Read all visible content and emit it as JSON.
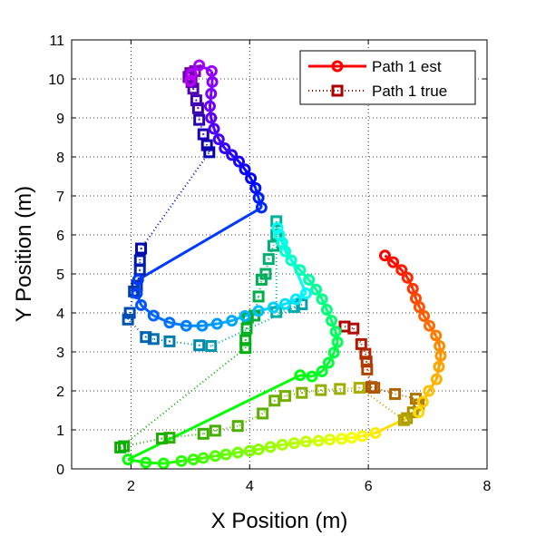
{
  "chart_data": {
    "type": "line",
    "title": "",
    "xlabel": "X Position (m)",
    "ylabel": "Y Position (m)",
    "xlim": [
      1,
      8
    ],
    "ylim": [
      0,
      11
    ],
    "xticks": [
      "2",
      "4",
      "6",
      "8"
    ],
    "yticks": [
      "0",
      "1",
      "2",
      "3",
      "4",
      "5",
      "6",
      "7",
      "8",
      "9",
      "10",
      "11"
    ],
    "grid": true,
    "legend_position": "top-right",
    "legend": [
      {
        "name": "Path 1 est",
        "color": "#ff0000",
        "marker": "circle",
        "linestyle": "solid"
      },
      {
        "name": "Path 1 true",
        "color": "#aa0000",
        "marker": "square",
        "linestyle": "dotted"
      }
    ],
    "est_path": [
      [
        6.28,
        5.47
      ],
      [
        6.42,
        5.3
      ],
      [
        6.56,
        5.1
      ],
      [
        6.66,
        4.9
      ],
      [
        6.75,
        4.62
      ],
      [
        6.8,
        4.37
      ],
      [
        6.86,
        4.15
      ],
      [
        6.94,
        3.92
      ],
      [
        7.03,
        3.67
      ],
      [
        7.14,
        3.42
      ],
      [
        7.2,
        3.15
      ],
      [
        7.22,
        2.9
      ],
      [
        7.19,
        2.62
      ],
      [
        7.15,
        2.3
      ],
      [
        7.02,
        2.0
      ],
      [
        6.92,
        1.72
      ],
      [
        6.85,
        1.45
      ],
      [
        6.12,
        0.92
      ],
      [
        5.9,
        0.84
      ],
      [
        5.72,
        0.8
      ],
      [
        5.55,
        0.77
      ],
      [
        5.35,
        0.75
      ],
      [
        5.16,
        0.72
      ],
      [
        4.95,
        0.7
      ],
      [
        4.75,
        0.66
      ],
      [
        4.55,
        0.62
      ],
      [
        4.35,
        0.56
      ],
      [
        4.15,
        0.5
      ],
      [
        4.0,
        0.46
      ],
      [
        3.8,
        0.42
      ],
      [
        3.6,
        0.37
      ],
      [
        3.42,
        0.33
      ],
      [
        3.22,
        0.28
      ],
      [
        3.05,
        0.24
      ],
      [
        2.85,
        0.2
      ],
      [
        2.55,
        0.14
      ],
      [
        2.25,
        0.16
      ],
      [
        1.95,
        0.24
      ],
      [
        4.85,
        2.4
      ],
      [
        5.05,
        2.37
      ],
      [
        5.22,
        2.5
      ],
      [
        5.33,
        2.72
      ],
      [
        5.42,
        2.98
      ],
      [
        5.48,
        3.25
      ],
      [
        5.45,
        3.52
      ],
      [
        5.38,
        3.8
      ],
      [
        5.3,
        4.08
      ],
      [
        5.22,
        4.35
      ],
      [
        5.12,
        4.6
      ],
      [
        5.0,
        4.85
      ],
      [
        4.85,
        5.1
      ],
      [
        4.7,
        5.35
      ],
      [
        4.6,
        5.58
      ],
      [
        4.55,
        5.8
      ],
      [
        4.5,
        6.0
      ],
      [
        4.47,
        6.18
      ],
      [
        4.95,
        4.5
      ],
      [
        4.78,
        4.35
      ],
      [
        4.6,
        4.23
      ],
      [
        4.4,
        4.14
      ],
      [
        4.15,
        4.05
      ],
      [
        3.92,
        3.92
      ],
      [
        3.7,
        3.8
      ],
      [
        3.45,
        3.72
      ],
      [
        3.2,
        3.67
      ],
      [
        2.93,
        3.67
      ],
      [
        2.65,
        3.75
      ],
      [
        2.38,
        3.93
      ],
      [
        2.17,
        4.2
      ],
      [
        2.1,
        4.5
      ],
      [
        2.12,
        4.85
      ],
      [
        4.2,
        6.7
      ],
      [
        4.15,
        6.95
      ],
      [
        4.1,
        7.2
      ],
      [
        4.02,
        7.45
      ],
      [
        3.92,
        7.68
      ],
      [
        3.82,
        7.88
      ],
      [
        3.7,
        8.05
      ],
      [
        3.58,
        8.22
      ],
      [
        3.48,
        8.45
      ],
      [
        3.4,
        8.72
      ],
      [
        3.35,
        9.0
      ],
      [
        3.33,
        9.3
      ],
      [
        3.35,
        9.62
      ],
      [
        3.37,
        9.92
      ],
      [
        3.36,
        10.2
      ],
      [
        3.15,
        10.35
      ],
      [
        3.02,
        10.12
      ],
      [
        3.0,
        9.95
      ]
    ],
    "true_path": [
      [
        5.6,
        3.65
      ],
      [
        5.75,
        3.6
      ],
      [
        5.88,
        3.2
      ],
      [
        5.95,
        2.95
      ],
      [
        5.97,
        2.75
      ],
      [
        5.98,
        2.55
      ],
      [
        6.05,
        2.1
      ],
      [
        6.1,
        2.08
      ],
      [
        6.45,
        1.92
      ],
      [
        6.8,
        1.8
      ],
      [
        6.85,
        1.65
      ],
      [
        6.75,
        1.45
      ],
      [
        6.65,
        1.3
      ],
      [
        6.6,
        1.25
      ],
      [
        5.85,
        2.08
      ],
      [
        5.52,
        2.05
      ],
      [
        5.2,
        2.02
      ],
      [
        4.88,
        1.95
      ],
      [
        4.6,
        1.87
      ],
      [
        4.42,
        1.75
      ],
      [
        4.22,
        1.42
      ],
      [
        3.8,
        1.1
      ],
      [
        3.42,
        0.98
      ],
      [
        3.22,
        0.9
      ],
      [
        2.65,
        0.8
      ],
      [
        2.52,
        0.78
      ],
      [
        1.88,
        0.58
      ],
      [
        1.82,
        0.55
      ],
      [
        3.93,
        3.1
      ],
      [
        3.93,
        3.3
      ],
      [
        3.95,
        3.6
      ],
      [
        3.97,
        3.88
      ],
      [
        4.08,
        3.93
      ],
      [
        4.15,
        4.42
      ],
      [
        4.2,
        4.85
      ],
      [
        4.27,
        5.0
      ],
      [
        4.32,
        5.38
      ],
      [
        4.4,
        5.72
      ],
      [
        4.45,
        6.0
      ],
      [
        4.45,
        6.35
      ],
      [
        4.45,
        4.02
      ],
      [
        4.75,
        4.15
      ],
      [
        4.88,
        4.22
      ],
      [
        3.35,
        3.15
      ],
      [
        3.15,
        3.17
      ],
      [
        2.65,
        3.27
      ],
      [
        2.38,
        3.33
      ],
      [
        2.25,
        3.38
      ],
      [
        1.95,
        3.83
      ],
      [
        1.98,
        4.0
      ],
      [
        2.05,
        4.55
      ],
      [
        2.1,
        4.7
      ],
      [
        2.15,
        5.1
      ],
      [
        2.15,
        5.35
      ],
      [
        2.17,
        5.65
      ],
      [
        3.32,
        8.12
      ],
      [
        3.28,
        8.3
      ],
      [
        3.22,
        8.58
      ],
      [
        3.15,
        8.95
      ],
      [
        3.13,
        9.25
      ],
      [
        3.1,
        9.45
      ],
      [
        3.05,
        9.75
      ],
      [
        3.02,
        9.92
      ],
      [
        2.97,
        10.05
      ],
      [
        3.0,
        10.15
      ],
      [
        3.08,
        10.2
      ]
    ]
  }
}
